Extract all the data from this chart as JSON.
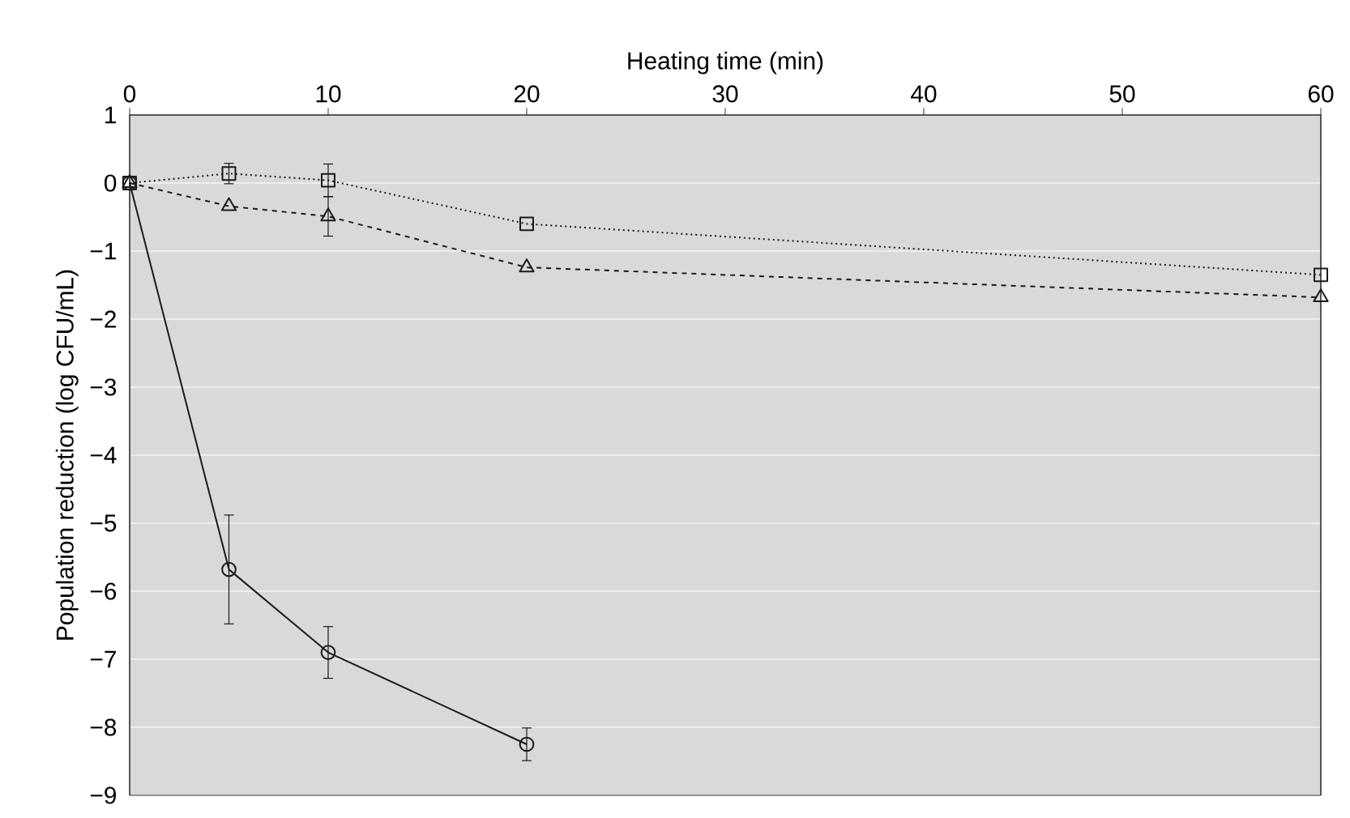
{
  "chart_data": {
    "type": "line",
    "xlabel": "Heating time (min)",
    "ylabel": "Population reduction (log CFU/mL)",
    "x": [
      0,
      5,
      10,
      20,
      60
    ],
    "series": [
      {
        "color": "#1a1a1a",
        "marker": "circle",
        "line_style": "solid",
        "values": [
          0,
          -5.68,
          -6.9,
          -8.25,
          null
        ],
        "errors": [
          null,
          0.8,
          0.38,
          0.24,
          null
        ]
      },
      {
        "color": "#1a1a1a",
        "marker": "square",
        "line_style": "dotted",
        "values": [
          0,
          0.14,
          0.04,
          -0.6,
          -1.35
        ],
        "errors": [
          null,
          0.15,
          0.24,
          null,
          null
        ]
      },
      {
        "color": "#1a1a1a",
        "marker": "triangle",
        "line_style": "dashed",
        "values": [
          0,
          -0.34,
          -0.49,
          -1.24,
          -1.68
        ],
        "errors": [
          null,
          null,
          0.29,
          null,
          null
        ]
      }
    ],
    "xlim": [
      0,
      60
    ],
    "xticks": [
      0,
      10,
      20,
      30,
      40,
      50,
      60
    ],
    "ylim": [
      -9,
      1
    ],
    "yticks": [
      1,
      0,
      {
        "value": -1,
        "label": "−1"
      },
      {
        "value": -2,
        "label": "−2"
      },
      {
        "value": -3,
        "label": "−3"
      },
      {
        "value": -4,
        "label": "−4"
      },
      {
        "value": -5,
        "label": "−5"
      },
      {
        "value": -6,
        "label": "−6"
      },
      {
        "value": -7,
        "label": "−7"
      },
      {
        "value": -8,
        "label": "−8"
      },
      {
        "value": -9,
        "label": "−9"
      }
    ],
    "grid": "y"
  }
}
